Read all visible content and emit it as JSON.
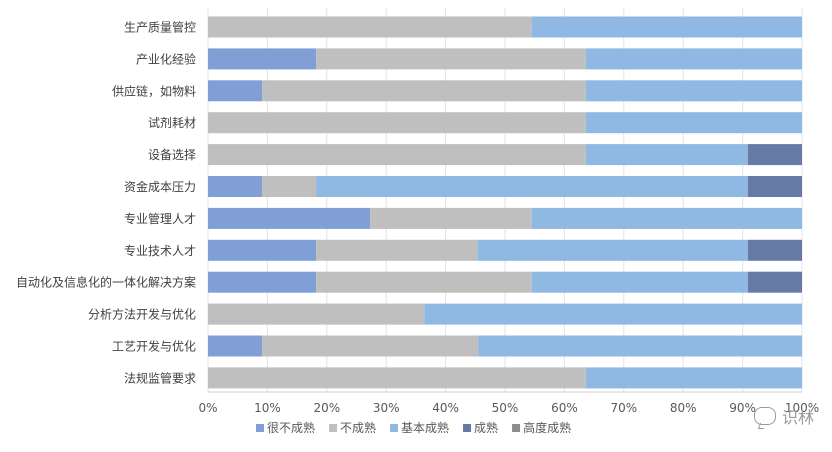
{
  "chart_data": {
    "type": "bar",
    "orientation": "horizontal",
    "stacked": "percent",
    "categories": [
      "生产质量管控",
      "产业化经验",
      "供应链，如物料",
      "试剂耗材",
      "设备选择",
      "资金成本压力",
      "专业管理人才",
      "专业技术人才",
      "自动化及信息化的一体化解决方案",
      "分析方法开发与优化",
      "工艺开发与优化",
      "法规监管要求"
    ],
    "series": [
      {
        "name": "很不成熟",
        "color": "#7f9fd6",
        "values": [
          0,
          18.2,
          9.1,
          0,
          0,
          9.1,
          27.3,
          18.2,
          18.2,
          0,
          9.1,
          0
        ]
      },
      {
        "name": "不成熟",
        "color": "#bfbfbf",
        "values": [
          54.5,
          45.4,
          54.5,
          63.6,
          63.6,
          9.1,
          27.2,
          27.2,
          36.3,
          36.4,
          36.4,
          63.6
        ]
      },
      {
        "name": "基本成熟",
        "color": "#8fb8e2",
        "values": [
          45.5,
          36.4,
          36.4,
          36.4,
          27.3,
          72.7,
          45.5,
          45.5,
          36.4,
          63.6,
          54.5,
          36.4
        ]
      },
      {
        "name": "成熟",
        "color": "#667aa6",
        "values": [
          0,
          0,
          0,
          0,
          9.1,
          9.1,
          0,
          9.1,
          9.1,
          0,
          0,
          0
        ]
      },
      {
        "name": "高度成熟",
        "color": "#8c8c8c",
        "values": [
          0,
          0,
          0,
          0,
          0,
          0,
          0,
          0,
          0,
          0,
          0,
          0
        ]
      }
    ],
    "x_ticks": [
      "0%",
      "10%",
      "20%",
      "30%",
      "40%",
      "50%",
      "60%",
      "70%",
      "80%",
      "90%",
      "100%"
    ],
    "xlim": [
      0,
      100
    ],
    "grid": true,
    "legend_position": "bottom"
  },
  "watermark": {
    "text": "识林"
  }
}
